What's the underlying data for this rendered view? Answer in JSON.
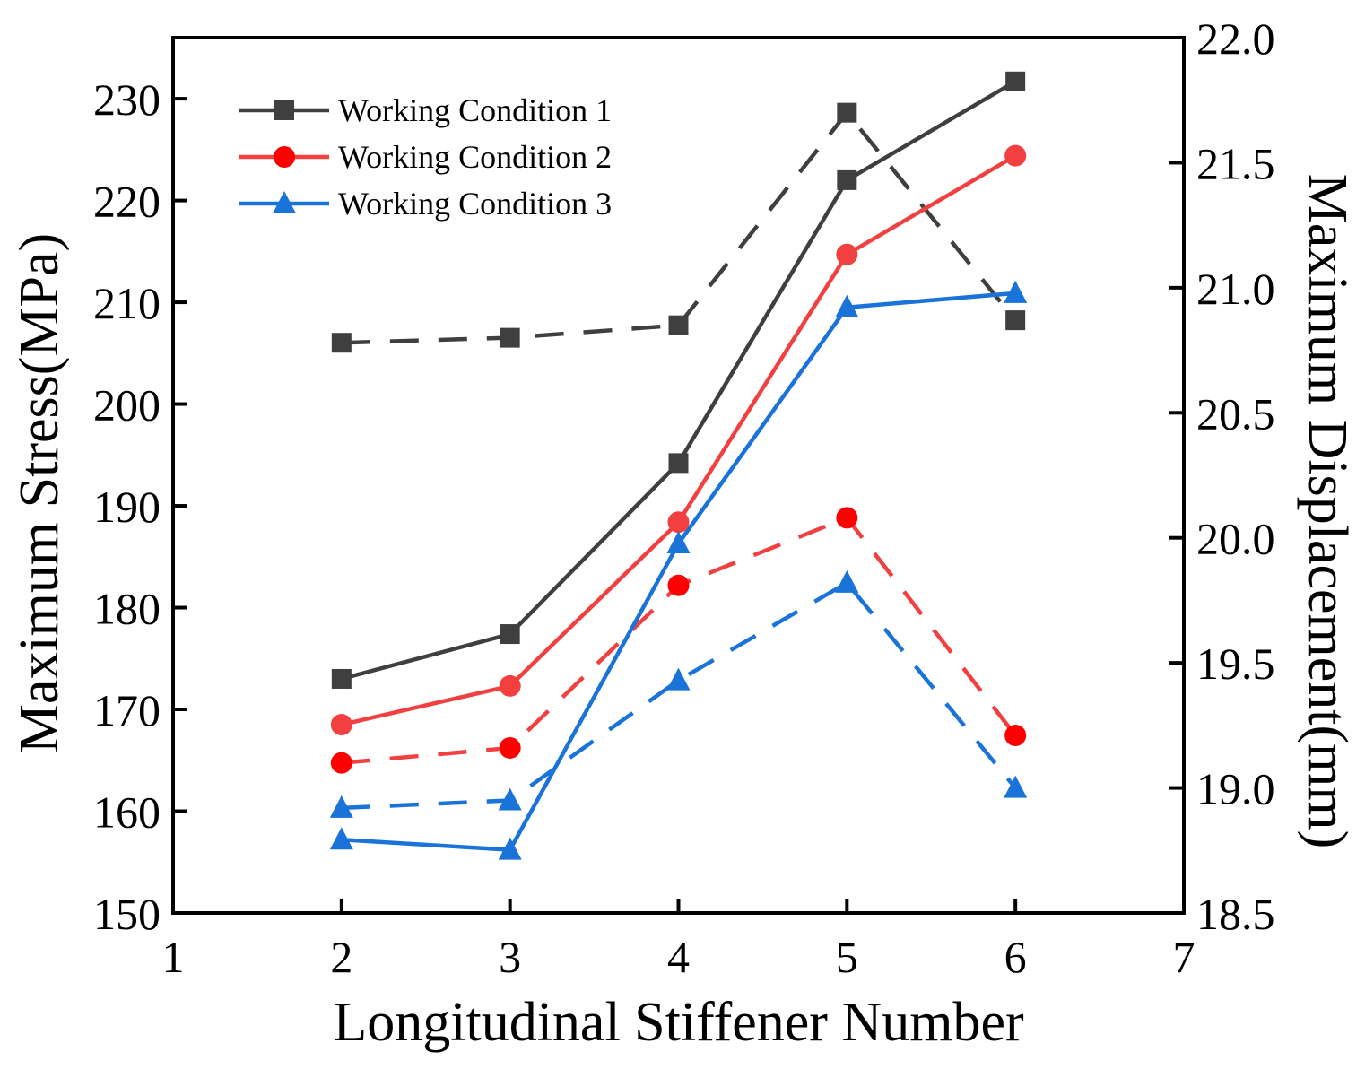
{
  "chart_data": {
    "type": "line",
    "title": "",
    "xlabel": "Longitudinal Stiffener Number",
    "ylabel": "Maximum Stress(MPa)",
    "y2label": "Maximum Displacement(mm)",
    "xlim": [
      1,
      7
    ],
    "ylim": [
      150,
      236
    ],
    "y2lim": [
      18.5,
      22.0
    ],
    "xticks": [
      "1",
      "2",
      "3",
      "4",
      "5",
      "6",
      "7"
    ],
    "yticks": [
      "150",
      "160",
      "170",
      "180",
      "190",
      "200",
      "210",
      "220",
      "230"
    ],
    "y2ticks": [
      "18.5",
      "19.0",
      "19.5",
      "20.0",
      "20.5",
      "21.0",
      "21.5",
      "22.0"
    ],
    "x": [
      2,
      3,
      4,
      5,
      6
    ],
    "legend_position": "top-left",
    "series": [
      {
        "name": "Working Condition 1",
        "color": "#3f3f3f",
        "marker": "square",
        "stress": [
          173.0,
          177.4,
          194.2,
          222.0,
          231.7
        ],
        "displacement": [
          20.78,
          20.8,
          20.85,
          21.7,
          20.87
        ]
      },
      {
        "name": "Working Condition 2",
        "color": "#f24040",
        "marker_fill": "#ff0000",
        "marker": "circle",
        "stress": [
          168.5,
          172.3,
          188.4,
          214.7,
          224.4
        ],
        "displacement": [
          19.1,
          19.16,
          19.81,
          20.08,
          19.21
        ]
      },
      {
        "name": "Working Condition 3",
        "color": "#1a73d8",
        "marker": "triangle",
        "stress": [
          157.2,
          156.2,
          186.3,
          209.5,
          210.9
        ],
        "displacement": [
          18.92,
          18.95,
          19.43,
          19.82,
          19.0
        ]
      }
    ]
  }
}
